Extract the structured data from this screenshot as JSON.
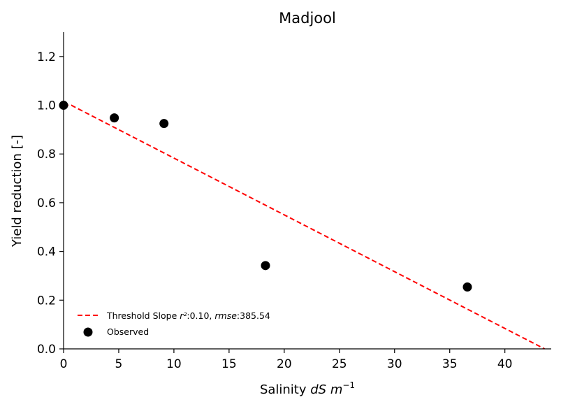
{
  "chart_data": {
    "type": "scatter",
    "title": "Madjool",
    "xlabel": {
      "text": "Salinity ",
      "italic": "dS m",
      "sup": "−1"
    },
    "ylabel": "Yield reduction [-]",
    "xlim": [
      0,
      44.2
    ],
    "ylim": [
      0,
      1.3
    ],
    "xticks": [
      0,
      5,
      10,
      15,
      20,
      25,
      30,
      35,
      40
    ],
    "yticks": [
      0.0,
      0.2,
      0.4,
      0.6,
      0.8,
      1.0,
      1.2
    ],
    "xtick_labels": [
      "0",
      "5",
      "10",
      "15",
      "20",
      "25",
      "30",
      "35",
      "40"
    ],
    "ytick_labels": [
      "0.0",
      "0.2",
      "0.4",
      "0.6",
      "0.8",
      "1.0",
      "1.2"
    ],
    "grid": false,
    "legend_position": "lower-left",
    "series": [
      {
        "name": "Threshold Slope",
        "kind": "line",
        "style": "dashed",
        "color": "#ff0000",
        "x": [
          0,
          0.7,
          43.6
        ],
        "y": [
          1.0,
          1.0,
          0.0
        ]
      },
      {
        "name": "Observed",
        "kind": "scatter",
        "color": "#000000",
        "x": [
          0,
          4.6,
          9.1,
          18.3,
          36.6
        ],
        "y": [
          1.0,
          0.948,
          0.925,
          0.342,
          0.254
        ]
      }
    ],
    "legend": {
      "line_label": "Threshold Slope ",
      "r2_sym": "r²",
      "r2_val": ":0.10, ",
      "rmse_sym": "rmse",
      "rmse_val": ":385.54",
      "scatter_label": "Observed"
    }
  }
}
